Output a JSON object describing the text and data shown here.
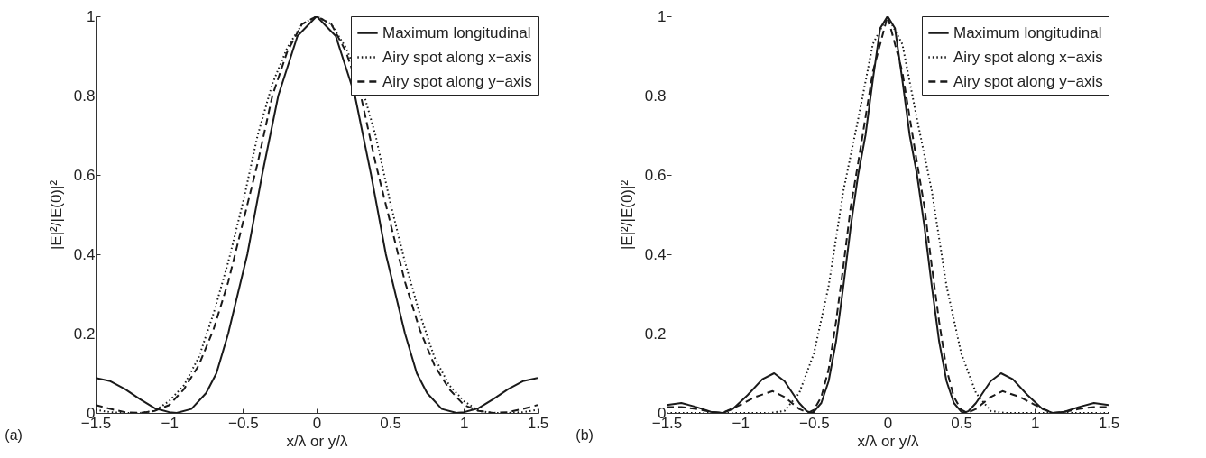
{
  "chart_data": [
    {
      "type": "line",
      "xlabel": "x/λ or y/λ",
      "ylabel": "|E|²/|E(0)|²",
      "annotations": [
        "(a)"
      ],
      "xlim": [
        -1.5,
        1.5
      ],
      "ylim": [
        0,
        1
      ],
      "xticks": [
        -1.5,
        -1,
        -0.5,
        0,
        0.5,
        1,
        1.5
      ],
      "yticks": [
        0,
        0.2,
        0.4,
        0.6,
        0.8,
        1
      ],
      "grid": false,
      "legend": "top right",
      "series": [
        {
          "name": "Maximum longitudinal",
          "color": "#1a1a1a",
          "line_style": "solid",
          "x": [
            -1.5,
            -1.4,
            -1.3,
            -1.2,
            -1.1,
            -1.0,
            -0.95,
            -0.85,
            -0.75,
            -0.68,
            -0.6,
            -0.47,
            -0.37,
            -0.26,
            -0.13,
            0,
            0.13,
            0.26,
            0.37,
            0.47,
            0.6,
            0.68,
            0.75,
            0.85,
            0.95,
            1.0,
            1.1,
            1.2,
            1.3,
            1.4,
            1.5
          ],
          "values": [
            0.088,
            0.08,
            0.06,
            0.035,
            0.012,
            0.002,
            0,
            0.01,
            0.05,
            0.1,
            0.2,
            0.4,
            0.6,
            0.8,
            0.95,
            1,
            0.95,
            0.8,
            0.6,
            0.4,
            0.2,
            0.1,
            0.05,
            0.01,
            0,
            0.002,
            0.012,
            0.035,
            0.06,
            0.08,
            0.088
          ]
        },
        {
          "name": "Airy spot along x−axis",
          "color": "#1a1a1a",
          "line_style": "dotted",
          "x": [
            -1.5,
            -1.4,
            -1.3,
            -1.2,
            -1.1,
            -1.0,
            -0.9,
            -0.8,
            -0.7,
            -0.6,
            -0.5,
            -0.4,
            -0.3,
            -0.2,
            -0.1,
            0,
            0.1,
            0.2,
            0.3,
            0.4,
            0.5,
            0.6,
            0.7,
            0.8,
            0.9,
            1.0,
            1.1,
            1.2,
            1.3,
            1.4,
            1.5
          ],
          "values": [
            0.008,
            0.002,
            0,
            0,
            0.005,
            0.03,
            0.07,
            0.14,
            0.25,
            0.38,
            0.53,
            0.7,
            0.83,
            0.92,
            0.98,
            1,
            0.98,
            0.92,
            0.83,
            0.7,
            0.53,
            0.38,
            0.25,
            0.14,
            0.07,
            0.03,
            0.005,
            0,
            0,
            0.002,
            0.008
          ]
        },
        {
          "name": "Airy spot along y−axis",
          "color": "#1a1a1a",
          "line_style": "dashed",
          "x": [
            -1.5,
            -1.4,
            -1.3,
            -1.2,
            -1.1,
            -1.0,
            -0.9,
            -0.8,
            -0.7,
            -0.6,
            -0.5,
            -0.4,
            -0.3,
            -0.2,
            -0.1,
            0,
            0.1,
            0.2,
            0.3,
            0.4,
            0.5,
            0.6,
            0.7,
            0.8,
            0.9,
            1.0,
            1.1,
            1.2,
            1.3,
            1.4,
            1.5
          ],
          "values": [
            0.02,
            0.01,
            0.002,
            0,
            0.005,
            0.02,
            0.06,
            0.12,
            0.21,
            0.33,
            0.48,
            0.63,
            0.8,
            0.91,
            0.98,
            1,
            0.98,
            0.91,
            0.8,
            0.63,
            0.48,
            0.33,
            0.21,
            0.12,
            0.06,
            0.02,
            0.005,
            0,
            0.002,
            0.01,
            0.02
          ]
        }
      ]
    },
    {
      "type": "line",
      "xlabel": "x/λ or y/λ",
      "ylabel": "|E|²/|E(0)|²",
      "annotations": [
        "(b)"
      ],
      "xlim": [
        -1.5,
        1.5
      ],
      "ylim": [
        0,
        1
      ],
      "xticks": [
        -1.5,
        -1,
        -0.5,
        0,
        0.5,
        1,
        1.5
      ],
      "yticks": [
        0,
        0.2,
        0.4,
        0.6,
        0.8,
        1
      ],
      "grid": false,
      "legend": "top right",
      "series": [
        {
          "name": "Maximum longitudinal",
          "color": "#1a1a1a",
          "line_style": "solid",
          "x": [
            -1.5,
            -1.4,
            -1.3,
            -1.2,
            -1.12,
            -1.05,
            -0.95,
            -0.85,
            -0.77,
            -0.7,
            -0.6,
            -0.55,
            -0.52,
            -0.5,
            -0.45,
            -0.4,
            -0.35,
            -0.3,
            -0.25,
            -0.2,
            -0.15,
            -0.1,
            -0.05,
            0,
            0.05,
            0.1,
            0.15,
            0.2,
            0.25,
            0.3,
            0.35,
            0.4,
            0.45,
            0.5,
            0.52,
            0.55,
            0.6,
            0.7,
            0.77,
            0.85,
            0.95,
            1.05,
            1.12,
            1.2,
            1.3,
            1.4,
            1.5
          ],
          "values": [
            0.02,
            0.025,
            0.015,
            0.003,
            0,
            0.01,
            0.045,
            0.085,
            0.1,
            0.08,
            0.025,
            0.005,
            0,
            0.003,
            0.025,
            0.08,
            0.18,
            0.32,
            0.47,
            0.6,
            0.7,
            0.84,
            0.97,
            1,
            0.97,
            0.84,
            0.7,
            0.6,
            0.47,
            0.32,
            0.18,
            0.08,
            0.025,
            0.003,
            0,
            0.005,
            0.025,
            0.08,
            0.1,
            0.085,
            0.045,
            0.01,
            0,
            0.003,
            0.015,
            0.025,
            0.02
          ]
        },
        {
          "name": "Airy spot along x−axis",
          "color": "#1a1a1a",
          "line_style": "dotted",
          "x": [
            -1.5,
            -1.2,
            -0.9,
            -0.8,
            -0.7,
            -0.6,
            -0.5,
            -0.4,
            -0.3,
            -0.2,
            -0.1,
            0,
            0.1,
            0.2,
            0.3,
            0.4,
            0.5,
            0.6,
            0.7,
            0.8,
            0.9,
            1.2,
            1.5
          ],
          "values": [
            0,
            0,
            0,
            0,
            0.005,
            0.05,
            0.15,
            0.32,
            0.56,
            0.74,
            0.93,
            1,
            0.93,
            0.74,
            0.56,
            0.32,
            0.15,
            0.05,
            0.005,
            0,
            0,
            0,
            0
          ]
        },
        {
          "name": "Airy spot along y−axis",
          "color": "#1a1a1a",
          "line_style": "dashed",
          "x": [
            -1.5,
            -1.4,
            -1.3,
            -1.2,
            -1.12,
            -1.0,
            -0.9,
            -0.78,
            -0.7,
            -0.6,
            -0.54,
            -0.5,
            -0.45,
            -0.4,
            -0.35,
            -0.3,
            -0.25,
            -0.2,
            -0.1,
            0,
            0.1,
            0.2,
            0.25,
            0.3,
            0.35,
            0.4,
            0.45,
            0.5,
            0.54,
            0.6,
            0.7,
            0.78,
            0.9,
            1.0,
            1.12,
            1.2,
            1.3,
            1.4,
            1.5
          ],
          "values": [
            0.015,
            0.015,
            0.01,
            0.003,
            0,
            0.02,
            0.04,
            0.055,
            0.04,
            0.01,
            0,
            0.008,
            0.04,
            0.11,
            0.23,
            0.37,
            0.52,
            0.63,
            0.86,
            1,
            0.86,
            0.63,
            0.52,
            0.37,
            0.23,
            0.11,
            0.04,
            0.008,
            0,
            0.01,
            0.04,
            0.055,
            0.04,
            0.02,
            0,
            0.003,
            0.01,
            0.015,
            0.015
          ]
        }
      ]
    }
  ]
}
